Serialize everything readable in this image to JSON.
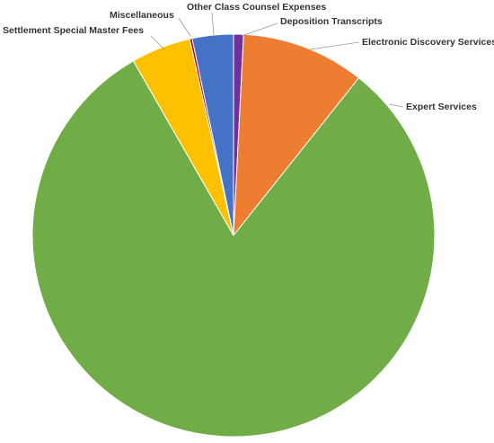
{
  "chart_data": {
    "type": "pie",
    "categories": [
      "Deposition Transcripts",
      "Electronic Discovery Services",
      "Expert Services",
      "Settlement Special Master Fees",
      "Miscellaneous",
      "Other Class Counsel Expenses"
    ],
    "values": [
      0.8,
      9.9,
      81,
      4.8,
      0.2,
      3.3
    ],
    "colors": [
      "#7030a0",
      "#ed7d31",
      "#70ad47",
      "#ffc000",
      "#c00000",
      "#4472c4"
    ]
  }
}
